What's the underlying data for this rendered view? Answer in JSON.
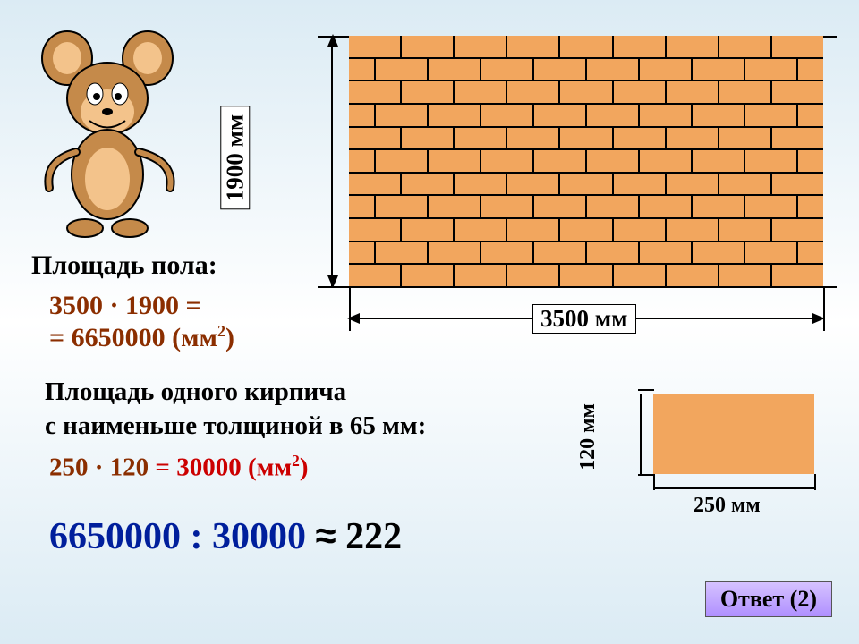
{
  "wall": {
    "height_label": "1900 мм",
    "width_label": "3500 мм",
    "height_mm": 1900,
    "width_mm": 3500,
    "brick_color": "#f2a65e",
    "rows": 11,
    "bricks_per_row": 9
  },
  "floor_area": {
    "title": "Площадь пола:",
    "line1": "3500 · 1900 =",
    "line2_prefix": "= 6650000 (мм",
    "line2_sup": "2",
    "line2_suffix": ")"
  },
  "brick_area": {
    "title_line1": "Площадь одного кирпича",
    "title_line2": "с наименьше толщиной в 65 мм:",
    "calc_lhs": "250 · 120",
    "calc_eq": " = ",
    "calc_rhs": "30000 (мм",
    "calc_sup": "2",
    "calc_suffix": ")"
  },
  "single_brick": {
    "height_label": "120 мм",
    "width_label": "250 мм",
    "height_mm": 120,
    "width_mm": 250,
    "color": "#f2a65e"
  },
  "result": {
    "lhs": "6650000 : 30000",
    "approx": "≈",
    "value": "222"
  },
  "answer_button": "Ответ (2)",
  "colors": {
    "bg_top": "#dbebf4",
    "bg_mid": "#ffffff",
    "calc_text": "#8b2e00",
    "equals_red": "#cc0000",
    "result_blue": "#001f9c",
    "button_grad_top": "#d6c2ff",
    "button_grad_bot": "#b090ff"
  },
  "fonts": {
    "body_pt": 30,
    "result_pt": 42,
    "label_pt": 27,
    "small_label_pt": 24,
    "button_pt": 26
  }
}
